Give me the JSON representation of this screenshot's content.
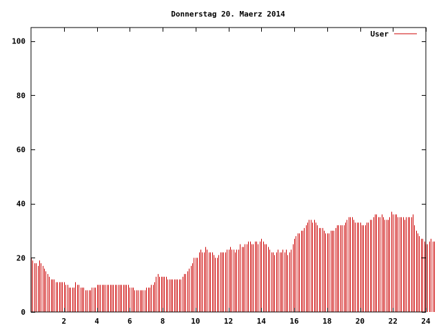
{
  "chart_data": {
    "type": "bar",
    "title": "Donnerstag 20. Maerz 2014",
    "xlabel": "",
    "ylabel": "",
    "xlim": [
      0,
      24
    ],
    "ylim": [
      0,
      105
    ],
    "x_ticks": [
      2,
      4,
      6,
      8,
      10,
      12,
      14,
      16,
      18,
      20,
      22,
      24
    ],
    "y_ticks": [
      0,
      20,
      40,
      60,
      80,
      100
    ],
    "legend_position": "top-right",
    "grid": false,
    "series": [
      {
        "name": "User",
        "color": "#cc0000",
        "x_step_hours": 0.1,
        "values": [
          20,
          19,
          18,
          18,
          17,
          19,
          18,
          17,
          16,
          15,
          14,
          13,
          12,
          12,
          12,
          11,
          11,
          11,
          11,
          11,
          11,
          10,
          10,
          9,
          9,
          9,
          9,
          11,
          10,
          10,
          9,
          9,
          9,
          8,
          8,
          8,
          8,
          9,
          9,
          9,
          10,
          10,
          10,
          10,
          10,
          10,
          10,
          10,
          10,
          10,
          10,
          10,
          10,
          10,
          10,
          10,
          10,
          10,
          10,
          10,
          9,
          9,
          9,
          8,
          8,
          8,
          8,
          8,
          8,
          8,
          9,
          9,
          9,
          10,
          10,
          11,
          13,
          14,
          13,
          13,
          13,
          13,
          13,
          12,
          12,
          12,
          12,
          12,
          12,
          12,
          12,
          12,
          13,
          14,
          14,
          15,
          16,
          17,
          18,
          20,
          20,
          20,
          22,
          23,
          22,
          22,
          24,
          23,
          22,
          22,
          22,
          21,
          20,
          20,
          21,
          22,
          22,
          22,
          22,
          23,
          23,
          24,
          23,
          23,
          22,
          23,
          23,
          25,
          24,
          24,
          25,
          25,
          26,
          26,
          25,
          25,
          26,
          26,
          25,
          26,
          27,
          26,
          25,
          25,
          24,
          23,
          22,
          22,
          21,
          22,
          23,
          22,
          22,
          23,
          22,
          23,
          21,
          22,
          23,
          25,
          27,
          28,
          29,
          29,
          30,
          30,
          31,
          32,
          33,
          34,
          34,
          33,
          34,
          33,
          32,
          31,
          31,
          31,
          30,
          29,
          29,
          29,
          30,
          30,
          30,
          31,
          32,
          32,
          32,
          32,
          32,
          33,
          34,
          35,
          35,
          35,
          34,
          33,
          33,
          33,
          33,
          32,
          32,
          32,
          33,
          33,
          34,
          34,
          35,
          36,
          36,
          35,
          35,
          36,
          35,
          34,
          34,
          34,
          35,
          37,
          36,
          36,
          36,
          35,
          35,
          35,
          35,
          34,
          35,
          35,
          35,
          35,
          36,
          32,
          30,
          29,
          28,
          27,
          27,
          26,
          25,
          25,
          26,
          27,
          26,
          26
        ]
      }
    ]
  }
}
